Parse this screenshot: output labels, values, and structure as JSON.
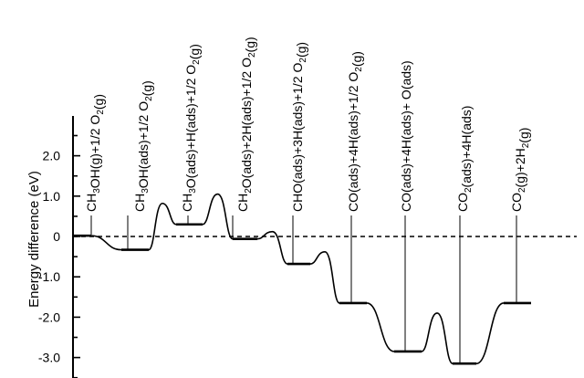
{
  "chart_data": {
    "type": "line",
    "title": "",
    "xlabel": "",
    "ylabel": "Energy difference (eV)",
    "ylim": [
      -3.2,
      2.5
    ],
    "y_ticks": [
      "2.0",
      "1.0",
      "0",
      "-1.0",
      "-2.0",
      "-3.0"
    ],
    "y_tick_values": [
      2.0,
      1.0,
      0,
      -1.0,
      -2.0,
      -3.0
    ],
    "zero_line": "dashed",
    "grid": false,
    "legend": "none",
    "states": [
      {
        "label": "CH3OH(g)+1/2 O2(g)",
        "energy": 0.02
      },
      {
        "label": "CH3OH(ads)+1/2 O2(g)",
        "energy": -0.33
      },
      {
        "label": "CH3O(ads)+H(ads)+1/2 O2(g)",
        "energy": 0.3
      },
      {
        "label": "CH2O(ads)+2H(ads)+1/2 O2(g)",
        "energy": -0.06
      },
      {
        "label": "CHO(ads)+3H(ads)+1/2 O2(g)",
        "energy": -0.68
      },
      {
        "label": "CO(ads)+4H(ads)+1/2 O2(g)",
        "energy": -1.65
      },
      {
        "label": "CO(ads)+4H(ads)+ O(ads)",
        "energy": -2.85
      },
      {
        "label": "CO2(ads)+4H(ads)",
        "energy": -3.15
      },
      {
        "label": "CO2(g)+2H2(g)",
        "energy": -1.65
      }
    ],
    "transition_barriers": [
      null,
      0.82,
      1.05,
      0.12,
      -0.38,
      null,
      -1.9,
      null
    ]
  }
}
